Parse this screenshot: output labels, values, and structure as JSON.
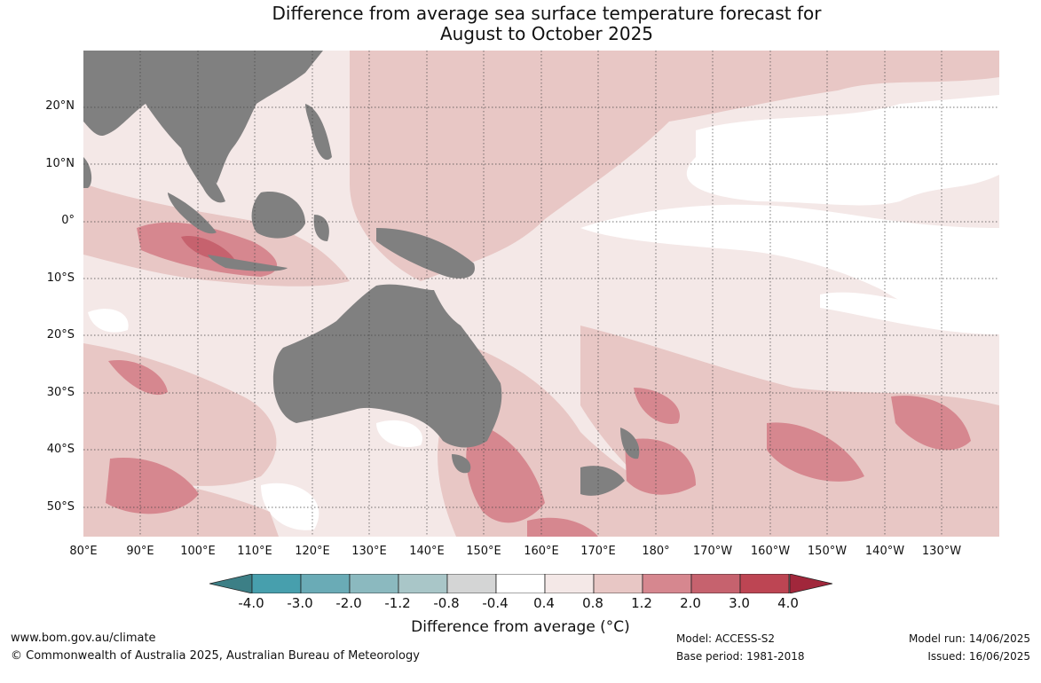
{
  "title": {
    "line1": "Difference from average sea surface temperature forecast for",
    "line2": "August to October 2025"
  },
  "map": {
    "lat_labels": [
      "20°N",
      "10°N",
      "0°",
      "10°S",
      "20°S",
      "30°S",
      "40°S",
      "50°S"
    ],
    "lon_labels": [
      "80°E",
      "90°E",
      "100°E",
      "110°E",
      "120°E",
      "130°E",
      "140°E",
      "150°E",
      "160°E",
      "170°E",
      "180°",
      "170°W",
      "160°W",
      "150°W",
      "140°W",
      "130°W"
    ],
    "land_color": "#808080",
    "background_anomaly_color": "#f4e8e7"
  },
  "colorbar": {
    "title": "Difference from average (°C)",
    "ticks": [
      "-4.0",
      "-3.0",
      "-2.0",
      "-1.2",
      "-0.8",
      "-0.4",
      "0.4",
      "0.8",
      "1.2",
      "2.0",
      "3.0",
      "4.0"
    ],
    "bin_colors": [
      "#479fad",
      "#6aabb6",
      "#8bb9bf",
      "#a9c6c8",
      "#d4d5d5",
      "#ffffff",
      "#f4e8e7",
      "#e8c7c5",
      "#d6878f",
      "#c6626e",
      "#bd4553"
    ],
    "extend_low_color": "#3c7f86",
    "extend_high_color": "#a1273b"
  },
  "footer": {
    "website": "www.bom.gov.au/climate",
    "copyright": "© Commonwealth of Australia 2025, Australian Bureau of Meteorology",
    "model": "Model: ACCESS-S2",
    "base_period": "Base period: 1981-2018",
    "model_run": "Model run: 14/06/2025",
    "issued": "Issued: 16/06/2025"
  }
}
